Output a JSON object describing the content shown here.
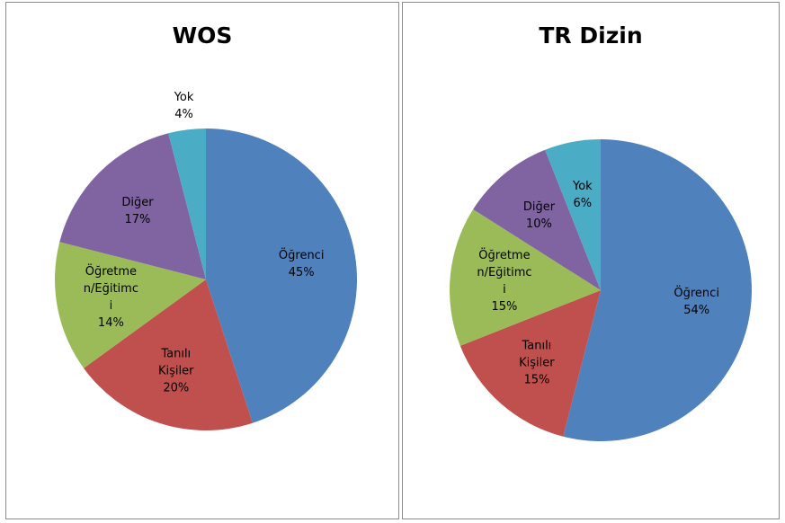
{
  "chart_data": [
    {
      "type": "pie",
      "title": "WOS",
      "categories": [
        "Öğrenci",
        "Tanılı Kişiler",
        "Öğretmen/Eğitimci",
        "Diğer",
        "Yok"
      ],
      "values": [
        45,
        20,
        14,
        17,
        4
      ],
      "value_labels": [
        "45%",
        "20%",
        "14%",
        "17%",
        "4%"
      ],
      "colors": [
        "#4f81bd",
        "#c0504d",
        "#9bbb59",
        "#8064a2",
        "#4bacc6"
      ]
    },
    {
      "type": "pie",
      "title": "TR Dizin",
      "categories": [
        "Öğrenci",
        "Tanılı Kişiler",
        "Öğretmen/Eğitimci",
        "Diğer",
        "Yok"
      ],
      "values": [
        54,
        15,
        15,
        10,
        6
      ],
      "value_labels": [
        "54%",
        "15%",
        "15%",
        "10%",
        "6%"
      ],
      "colors": [
        "#4f81bd",
        "#c0504d",
        "#9bbb59",
        "#8064a2",
        "#4bacc6"
      ]
    }
  ]
}
